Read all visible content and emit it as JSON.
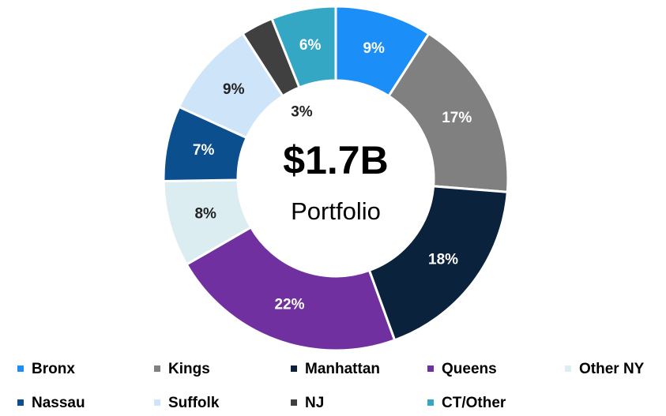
{
  "chart_data": {
    "type": "donut",
    "center_title": "$1.7B",
    "center_subtitle": "Portfolio",
    "categories": [
      "Bronx",
      "Kings",
      "Manhattan",
      "Queens",
      "Other NY",
      "Nassau",
      "Suffolk",
      "NJ",
      "CT/Other"
    ],
    "values": [
      9,
      17,
      18,
      22,
      8,
      7,
      9,
      3,
      6
    ],
    "value_labels": [
      "9%",
      "17%",
      "18%",
      "22%",
      "8%",
      "7%",
      "9%",
      "3%",
      "6%"
    ],
    "colors": [
      "#1b8ef7",
      "#808080",
      "#0b223d",
      "#7030a0",
      "#dcedf2",
      "#0c4f8e",
      "#cde4f9",
      "#404040",
      "#33a7c4"
    ],
    "legend": "bottom"
  }
}
